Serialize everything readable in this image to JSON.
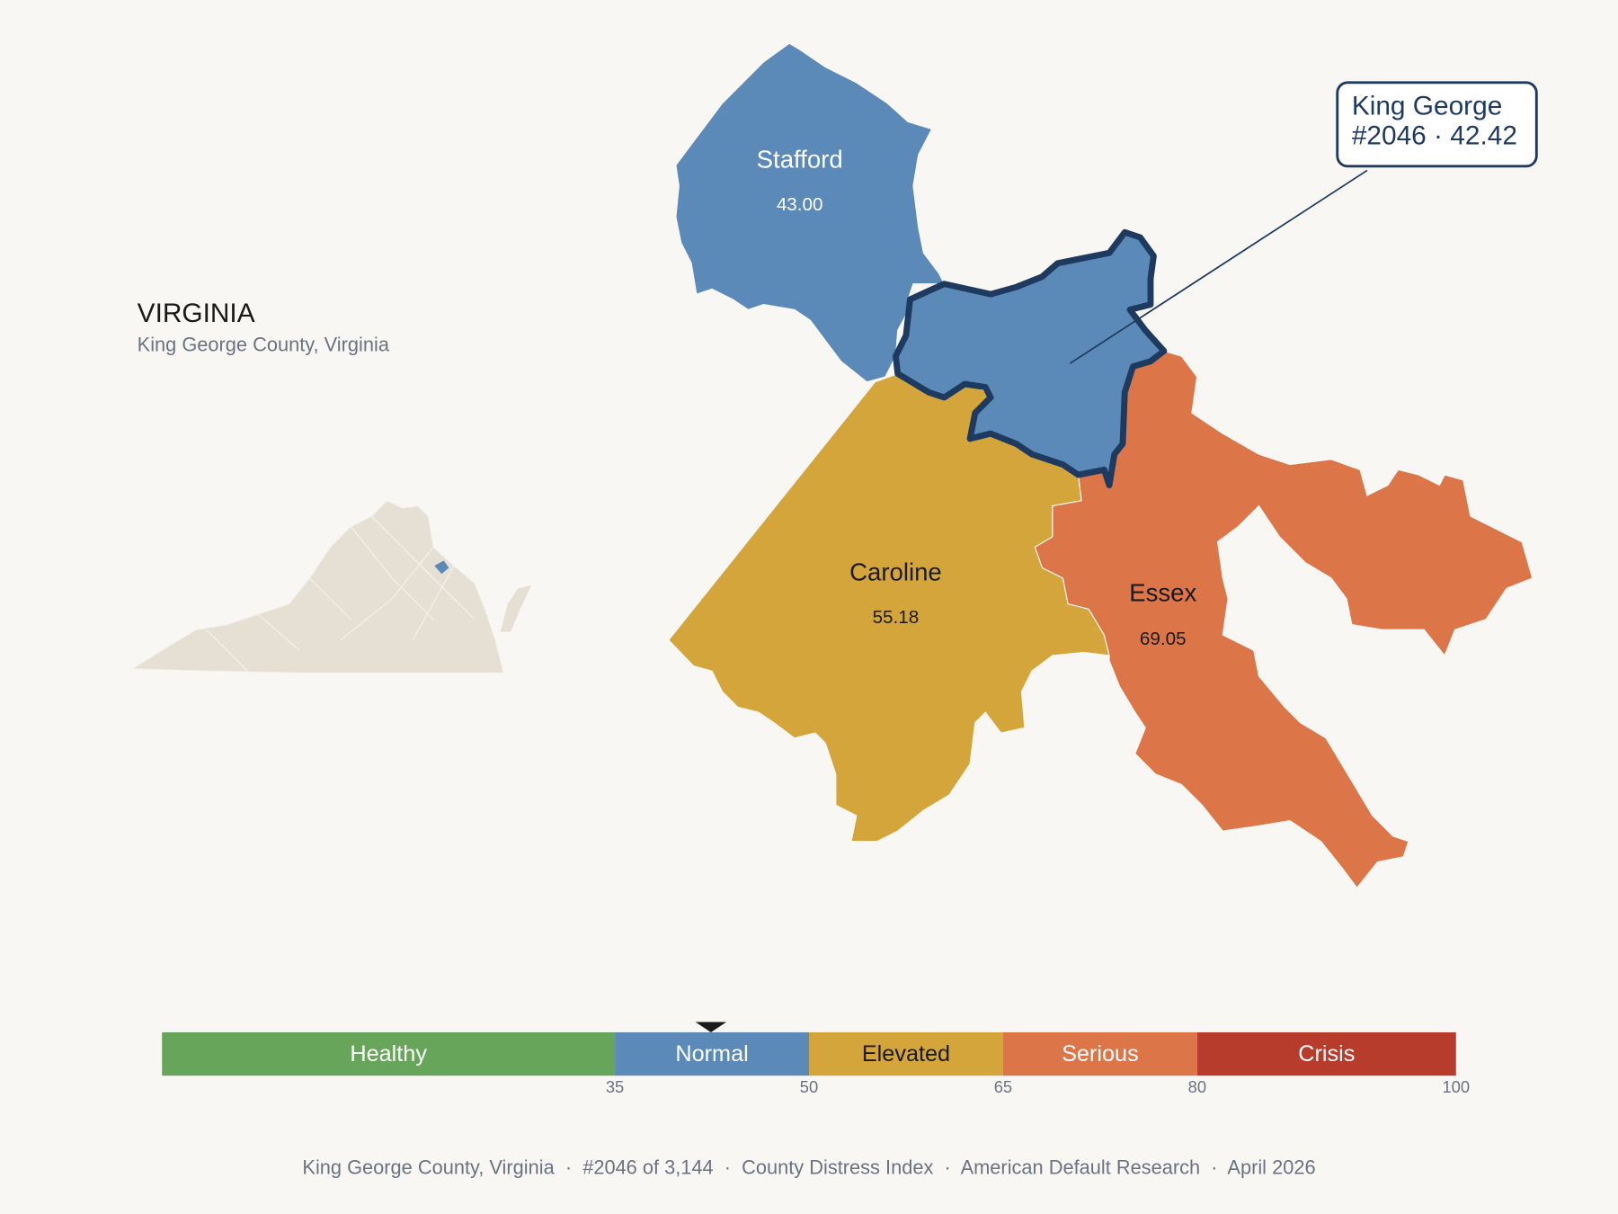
{
  "header": {
    "title": "VIRGINIA",
    "subtitle": "King George County, Virginia"
  },
  "counties": [
    {
      "name": "Stafford",
      "label": "43.00",
      "color": "#5b8ab8",
      "text_color": "#ffffff"
    },
    {
      "name": "Caroline",
      "label": "55.18",
      "color": "#d4a53a",
      "text_color": "#1a1a1a"
    },
    {
      "name": "Essex",
      "label": "69.05",
      "color": "#dc7649",
      "text_color": "#1a1a1a"
    }
  ],
  "highlight": {
    "color": "#5b8ab8",
    "outline": "#1e3a5f"
  },
  "callout": {
    "title": "King George",
    "detail": "#2046 · 42.42"
  },
  "legend": {
    "range": [
      0,
      100
    ],
    "ticks": [
      35,
      50,
      65,
      80,
      100
    ],
    "marker": 42.42,
    "bands": [
      {
        "name": "Healthy",
        "color": "#67a65a",
        "text_color": "#ffffff"
      },
      {
        "name": "Normal",
        "color": "#5b8ab8",
        "text_color": "#ffffff"
      },
      {
        "name": "Elevated",
        "color": "#d4a53a",
        "text_color": "#1a1a1a"
      },
      {
        "name": "Serious",
        "color": "#dc7649",
        "text_color": "#ffffff"
      },
      {
        "name": "Crisis",
        "color": "#b83c2b",
        "text_color": "#ffffff"
      }
    ]
  },
  "footer": "King George County, Virginia  ·  #2046 of 3,144  ·  County Distress Index  ·  American Default Research  ·  April 2026"
}
